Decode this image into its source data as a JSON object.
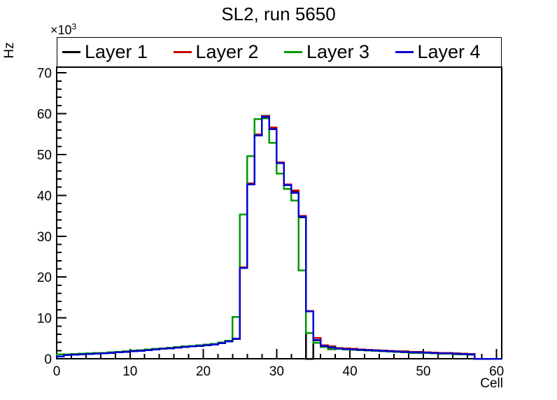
{
  "page": {
    "background": "#ffffff"
  },
  "title": "SL2, run 5650",
  "axes": {
    "x_title": "Cell",
    "y_title": "Hz",
    "y_exponent_base": "×10",
    "y_exponent_power": "3"
  },
  "legend": {
    "items": [
      {
        "label": "Layer 1",
        "color": "#000000"
      },
      {
        "label": "Layer 2",
        "color": "#cc0000"
      },
      {
        "label": "Layer 3",
        "color": "#009900"
      },
      {
        "label": "Layer 4",
        "color": "#0000cc"
      }
    ]
  },
  "chart_data": {
    "type": "step-histogram",
    "title": "SL2, run 5650",
    "xlabel": "Cell",
    "ylabel": "Hz",
    "y_unit_multiplier": "×10³",
    "values_unit": "kHz (×10³ Hz)",
    "xlim": [
      0,
      60.7
    ],
    "ylim": [
      0,
      71.4
    ],
    "x_major_ticks": [
      0,
      10,
      20,
      30,
      40,
      50,
      60
    ],
    "x_minor_tick_step": 2,
    "y_major_ticks": [
      0,
      10,
      20,
      30,
      40,
      50,
      60,
      70
    ],
    "y_minor_tick_step": 2,
    "bin_width": 1,
    "x_start": 0,
    "grid": false,
    "legend_position": "top",
    "series": [
      {
        "name": "Layer 1",
        "color": "#000000",
        "values": [
          0.6,
          0.95,
          1.05,
          1.1,
          1.2,
          1.3,
          1.38,
          1.48,
          1.62,
          1.78,
          1.92,
          2.02,
          2.18,
          2.32,
          2.48,
          2.62,
          2.78,
          2.92,
          3.08,
          3.22,
          3.38,
          3.58,
          3.88,
          4.3,
          4.9,
          22.3,
          42.8,
          54.8,
          59.5,
          56.4,
          48.0,
          42.6,
          40.9,
          34.6,
          0,
          4.5,
          3.2,
          2.35,
          2.55,
          2.3,
          2.25,
          2.25,
          2.15,
          2.05,
          1.95,
          1.88,
          1.8,
          1.75,
          1.65,
          1.6,
          1.55,
          1.45,
          1.4,
          1.35,
          1.25,
          1.2,
          1.12,
          0
        ]
      },
      {
        "name": "Layer 2",
        "color": "#cc0000",
        "values": [
          0.58,
          0.93,
          1.03,
          1.08,
          1.18,
          1.28,
          1.33,
          1.43,
          1.58,
          1.73,
          1.88,
          1.98,
          2.13,
          2.28,
          2.43,
          2.58,
          2.73,
          2.88,
          3.03,
          3.18,
          3.33,
          3.53,
          3.83,
          4.23,
          4.85,
          22.4,
          42.9,
          54.9,
          59.4,
          56.6,
          48.1,
          42.7,
          41.2,
          35.0,
          11.7,
          5.1,
          3.3,
          3.0,
          2.65,
          2.5,
          2.4,
          2.3,
          2.2,
          2.1,
          2.0,
          1.9,
          1.85,
          1.8,
          1.7,
          1.65,
          1.6,
          1.5,
          1.45,
          1.4,
          1.3,
          1.25,
          1.15,
          0
        ]
      },
      {
        "name": "Layer 3",
        "color": "#009900",
        "values": [
          1.1,
          1.05,
          1.15,
          1.2,
          1.3,
          1.4,
          1.45,
          1.55,
          1.7,
          1.85,
          2.0,
          2.1,
          2.25,
          2.4,
          2.55,
          2.7,
          2.85,
          3.0,
          3.15,
          3.3,
          3.45,
          3.65,
          3.95,
          4.4,
          10.2,
          35.3,
          49.6,
          58.7,
          58.9,
          52.9,
          45.3,
          41.6,
          38.7,
          21.6,
          6.3,
          3.9,
          2.9,
          2.4,
          2.4,
          2.25,
          2.2,
          2.1,
          2.0,
          1.9,
          1.8,
          1.75,
          1.65,
          1.6,
          1.4,
          1.45,
          1.4,
          1.3,
          1.25,
          1.2,
          1.1,
          1.05,
          1.0,
          0
        ]
      },
      {
        "name": "Layer 4",
        "color": "#0000cc",
        "values": [
          0.55,
          0.9,
          1.0,
          1.05,
          1.15,
          1.25,
          1.3,
          1.4,
          1.55,
          1.7,
          1.85,
          1.95,
          2.1,
          2.25,
          2.4,
          2.55,
          2.7,
          2.85,
          3.0,
          3.15,
          3.3,
          3.5,
          3.8,
          4.2,
          4.8,
          22.2,
          42.7,
          54.7,
          59.2,
          56.2,
          47.9,
          42.5,
          40.6,
          34.8,
          11.6,
          4.6,
          3.1,
          2.8,
          2.5,
          2.35,
          2.3,
          2.2,
          2.1,
          2.0,
          1.9,
          1.85,
          1.75,
          1.7,
          1.6,
          1.55,
          1.5,
          1.4,
          1.35,
          1.3,
          1.2,
          1.15,
          1.1,
          0
        ]
      }
    ]
  }
}
